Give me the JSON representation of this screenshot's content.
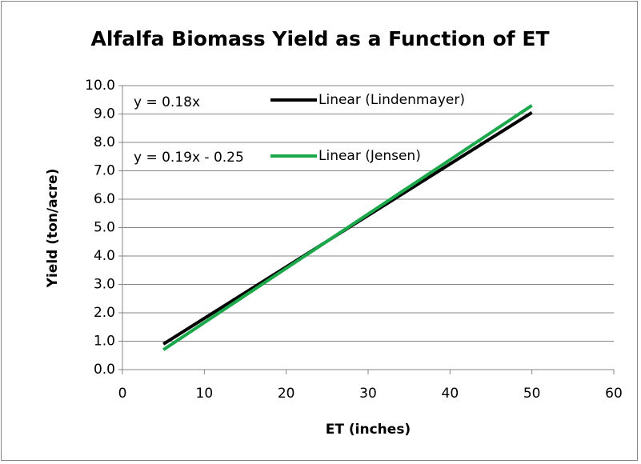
{
  "chart_data": {
    "type": "line",
    "title": "Alfalfa Biomass Yield as a Function of ET",
    "x_label": "ET (inches)",
    "y_label": "Yield (ton/acre)",
    "annotations": [
      "y = 0.18x",
      "y = 0.19x - 0.25"
    ],
    "x": [
      5,
      50
    ],
    "series": [
      {
        "name": "Linear (Lindenmayer)",
        "color": "#000000",
        "values": [
          0.9,
          9.05
        ]
      },
      {
        "name": "Linear (Jensen)",
        "color": "#1aa84a",
        "values": [
          0.7,
          9.3
        ]
      }
    ],
    "xlim": [
      0,
      60
    ],
    "xticks": [
      0,
      10,
      20,
      30,
      40,
      50,
      60
    ],
    "ylim": [
      0,
      10
    ],
    "yticks": [
      {
        "value": 0,
        "label": "0.0"
      },
      {
        "value": 1,
        "label": "1.0"
      },
      {
        "value": 2,
        "label": "2.0"
      },
      {
        "value": 3,
        "label": "3.0"
      },
      {
        "value": 4,
        "label": "4.0"
      },
      {
        "value": 5,
        "label": "5.0"
      },
      {
        "value": 6,
        "label": "6.0"
      },
      {
        "value": 7,
        "label": "7.0"
      },
      {
        "value": 8,
        "label": "8.0"
      },
      {
        "value": 9,
        "label": "9.0"
      },
      {
        "value": 10,
        "label": "10.0"
      }
    ],
    "grid": true
  }
}
